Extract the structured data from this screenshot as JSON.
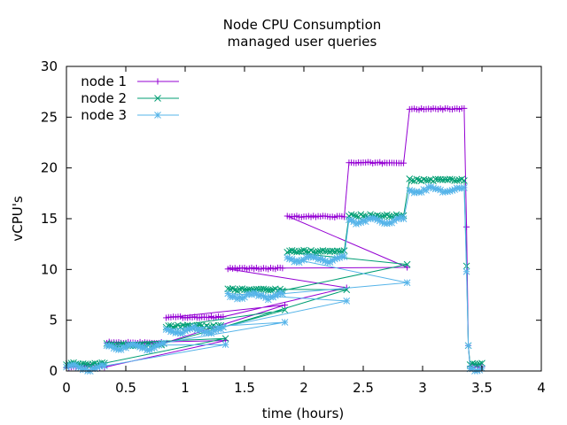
{
  "chart_data": {
    "type": "line",
    "title": "Node CPU Consumption",
    "subtitle": "managed user queries",
    "xlabel": "time (hours)",
    "ylabel": "vCPU's",
    "xlim": [
      0,
      4
    ],
    "ylim": [
      0,
      30
    ],
    "xticks": [
      0,
      0.5,
      1,
      1.5,
      2,
      2.5,
      3,
      3.5,
      4
    ],
    "xtick_labels": [
      "0",
      "0.5",
      "1",
      "1.5",
      "2",
      "2.5",
      "3",
      "3.5",
      "4"
    ],
    "yticks": [
      0,
      5,
      10,
      15,
      20,
      25,
      30
    ],
    "ytick_labels": [
      "0",
      "5",
      "10",
      "15",
      "20",
      "25",
      "30"
    ],
    "grid": false,
    "legend_position": "top-left",
    "series": [
      {
        "name": "node 1",
        "color": "#9400d3",
        "marker": "plus",
        "steps": [
          {
            "start": 0.0,
            "end": 0.32,
            "level": 0.4
          },
          {
            "start": 0.34,
            "end": 0.82,
            "level": 2.8
          },
          {
            "start": 0.84,
            "end": 1.32,
            "level": 5.3
          },
          {
            "start": 1.36,
            "end": 1.82,
            "level": 10.1
          },
          {
            "start": 1.86,
            "end": 2.34,
            "level": 15.2
          },
          {
            "start": 2.38,
            "end": 2.85,
            "level": 20.5
          },
          {
            "start": 2.89,
            "end": 3.35,
            "level": 25.8
          },
          {
            "start": 3.4,
            "end": 3.5,
            "level": 0.4
          }
        ],
        "dips": [
          {
            "x": 1.34,
            "value": 3.0
          },
          {
            "x": 1.84,
            "value": 6.5
          },
          {
            "x": 2.36,
            "value": 8.2
          },
          {
            "x": 2.87,
            "value": 10.2
          }
        ]
      },
      {
        "name": "node 2",
        "color": "#009e73",
        "marker": "cross",
        "steps": [
          {
            "start": 0.0,
            "end": 0.32,
            "level": 0.7
          },
          {
            "start": 0.34,
            "end": 0.82,
            "level": 2.6
          },
          {
            "start": 0.84,
            "end": 1.32,
            "level": 4.4
          },
          {
            "start": 1.36,
            "end": 1.82,
            "level": 8.0
          },
          {
            "start": 1.86,
            "end": 2.34,
            "level": 11.8
          },
          {
            "start": 2.38,
            "end": 2.85,
            "level": 15.3
          },
          {
            "start": 2.89,
            "end": 3.35,
            "level": 18.8
          },
          {
            "start": 3.4,
            "end": 3.5,
            "level": 0.7
          }
        ],
        "dips": [
          {
            "x": 1.34,
            "value": 3.2
          },
          {
            "x": 1.84,
            "value": 6.0
          },
          {
            "x": 2.36,
            "value": 8.0
          },
          {
            "x": 2.87,
            "value": 10.5
          }
        ]
      },
      {
        "name": "node 3",
        "color": "#56b4e9",
        "marker": "star",
        "steps": [
          {
            "start": 0.0,
            "end": 0.32,
            "level": 0.3
          },
          {
            "start": 0.34,
            "end": 0.82,
            "level": 2.4
          },
          {
            "start": 0.84,
            "end": 1.32,
            "level": 4.0
          },
          {
            "start": 1.36,
            "end": 1.82,
            "level": 7.4
          },
          {
            "start": 1.86,
            "end": 2.34,
            "level": 11.0
          },
          {
            "start": 2.38,
            "end": 2.85,
            "level": 14.8
          },
          {
            "start": 2.89,
            "end": 3.35,
            "level": 17.8
          },
          {
            "start": 3.4,
            "end": 3.5,
            "level": 0.3
          }
        ],
        "dips": [
          {
            "x": 1.34,
            "value": 2.6
          },
          {
            "x": 1.84,
            "value": 4.8
          },
          {
            "x": 2.36,
            "value": 6.9
          },
          {
            "x": 2.87,
            "value": 8.7
          }
        ]
      }
    ]
  }
}
